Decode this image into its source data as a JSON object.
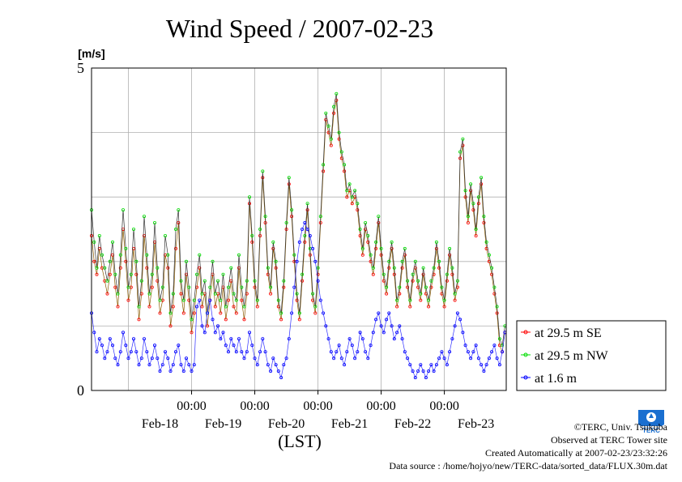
{
  "chart_data": {
    "type": "line",
    "title": "Wind Speed / 2007-02-23",
    "ylabel": "[m/s]",
    "xlabel": "(LST)",
    "ylim": [
      0,
      5
    ],
    "yticks": [
      "0",
      "5"
    ],
    "x_time_ticks": [
      "00:00",
      "00:00",
      "00:00",
      "00:00",
      "00:00"
    ],
    "x_date_ticks": [
      "Feb-18",
      "Feb-19",
      "Feb-20",
      "Feb-21",
      "Feb-22",
      "Feb-23"
    ],
    "xlim_days": [
      "2007-02-17T10:00",
      "2007-02-23T23:30"
    ],
    "grid": true,
    "legend_position": "right",
    "series": [
      {
        "name": "at 29.5 m SE",
        "color": "#ff0000",
        "x_days_step": 0.0416667,
        "values": [
          2.4,
          2.0,
          1.8,
          2.2,
          1.9,
          1.7,
          1.5,
          1.8,
          2.1,
          1.6,
          1.3,
          1.9,
          2.5,
          2.0,
          1.4,
          1.6,
          2.2,
          1.8,
          1.1,
          1.5,
          2.4,
          1.9,
          1.3,
          1.6,
          2.3,
          1.7,
          1.2,
          1.4,
          2.1,
          1.9,
          1.0,
          1.3,
          2.2,
          2.6,
          1.5,
          1.2,
          1.8,
          1.4,
          0.9,
          1.2,
          1.6,
          1.9,
          1.3,
          1.5,
          1.0,
          1.4,
          1.8,
          1.3,
          1.5,
          1.2,
          1.6,
          1.1,
          1.4,
          1.7,
          1.3,
          1.2,
          1.9,
          1.4,
          1.1,
          1.5,
          2.9,
          2.3,
          1.6,
          1.3,
          2.4,
          3.3,
          2.6,
          1.8,
          1.5,
          2.2,
          1.9,
          1.3,
          1.1,
          1.6,
          2.5,
          3.2,
          2.7,
          2.0,
          1.4,
          1.1,
          1.7,
          2.3,
          2.8,
          2.1,
          1.4,
          1.2,
          1.8,
          2.6,
          3.4,
          4.2,
          4.0,
          3.8,
          4.3,
          4.5,
          3.9,
          3.6,
          3.4,
          3.0,
          3.1,
          2.9,
          3.0,
          2.8,
          2.4,
          2.1,
          2.5,
          2.3,
          2.0,
          1.8,
          2.2,
          2.6,
          2.1,
          1.7,
          1.5,
          1.9,
          2.2,
          1.8,
          1.3,
          1.5,
          1.9,
          2.1,
          1.6,
          1.3,
          1.7,
          1.9,
          1.6,
          1.4,
          1.8,
          1.5,
          1.3,
          1.6,
          1.8,
          2.2,
          1.9,
          1.5,
          1.3,
          1.7,
          2.1,
          1.8,
          1.4,
          1.6,
          3.6,
          3.8,
          3.0,
          2.6,
          3.1,
          2.8,
          2.4,
          2.9,
          3.2,
          2.6,
          2.2,
          2.0,
          1.8,
          1.5,
          1.2,
          0.7,
          0.6,
          0.9,
          1.3,
          1.7,
          2.4,
          2.0,
          1.4,
          1.0,
          0.8,
          1.1,
          1.6,
          2.1,
          1.8,
          1.3,
          1.1,
          1.5,
          2.2,
          3.2,
          3.9,
          4.2,
          3.8,
          3.4,
          3.6,
          4.0,
          3.6,
          3.2,
          3.0,
          2.6,
          2.3,
          2.8,
          3.1,
          2.6,
          2.2,
          2.0,
          1.8,
          1.6,
          2.1,
          2.6,
          2.3,
          1.9,
          1.6,
          1.4,
          1.2,
          1.6,
          2.1,
          2.9,
          3.6,
          3.0,
          2.4,
          2.0,
          1.8,
          2.4,
          3.2,
          2.8,
          2.2,
          1.8,
          1.5,
          1.3,
          1.6,
          1.9,
          1.7,
          1.2,
          1.0,
          1.4,
          1.8,
          2.2,
          1.8,
          1.4,
          1.2,
          1.6,
          2.3,
          3.0,
          2.6,
          2.0,
          1.6,
          1.3,
          1.1,
          1.5,
          1.8,
          3.6,
          3.7,
          3.3,
          2.8,
          2.2,
          1.5,
          1.0
        ]
      },
      {
        "name": "at 29.5 m NW",
        "color": "#00dd00",
        "x_days_step": 0.0416667,
        "values": [
          2.8,
          2.3,
          1.9,
          2.4,
          2.1,
          1.9,
          1.7,
          2.0,
          2.3,
          1.8,
          1.5,
          2.1,
          2.8,
          2.2,
          1.6,
          1.8,
          2.5,
          2.0,
          1.3,
          1.7,
          2.7,
          2.1,
          1.5,
          1.8,
          2.6,
          1.9,
          1.4,
          1.6,
          2.4,
          2.1,
          1.2,
          1.5,
          2.5,
          2.8,
          1.7,
          1.4,
          2.0,
          1.6,
          1.1,
          1.4,
          1.8,
          2.1,
          1.5,
          1.7,
          1.2,
          1.6,
          2.0,
          1.5,
          1.7,
          1.4,
          1.8,
          1.3,
          1.6,
          1.9,
          1.5,
          1.4,
          2.1,
          1.6,
          1.3,
          1.7,
          3.0,
          2.4,
          1.7,
          1.4,
          2.5,
          3.4,
          2.7,
          1.9,
          1.6,
          2.3,
          2.0,
          1.4,
          1.2,
          1.7,
          2.6,
          3.3,
          2.8,
          2.1,
          1.5,
          1.2,
          1.8,
          2.4,
          2.9,
          2.2,
          1.5,
          1.3,
          1.9,
          2.7,
          3.5,
          4.3,
          4.1,
          3.9,
          4.4,
          4.6,
          4.0,
          3.7,
          3.5,
          3.1,
          3.2,
          3.0,
          3.1,
          2.9,
          2.5,
          2.2,
          2.6,
          2.4,
          2.1,
          1.9,
          2.3,
          2.7,
          2.2,
          1.8,
          1.6,
          2.0,
          2.3,
          1.9,
          1.4,
          1.6,
          2.0,
          2.2,
          1.7,
          1.4,
          1.8,
          2.0,
          1.7,
          1.5,
          1.9,
          1.6,
          1.4,
          1.7,
          1.9,
          2.3,
          2.0,
          1.6,
          1.4,
          1.8,
          2.2,
          1.9,
          1.5,
          1.7,
          3.7,
          3.9,
          3.1,
          2.7,
          3.2,
          2.9,
          2.5,
          3.0,
          3.3,
          2.7,
          2.3,
          2.1,
          1.9,
          1.6,
          1.3,
          0.8,
          0.7,
          1.0,
          1.4,
          1.8,
          2.5,
          2.1,
          1.5,
          1.1,
          0.9,
          1.2,
          1.7,
          2.2,
          1.9,
          1.4,
          1.2,
          1.6,
          2.3,
          3.3,
          4.0,
          4.4,
          3.9,
          3.5,
          3.7,
          4.1,
          3.7,
          3.3,
          3.1,
          2.7,
          2.4,
          2.9,
          3.2,
          2.7,
          2.3,
          2.1,
          1.9,
          1.7,
          2.2,
          2.7,
          2.4,
          2.0,
          1.7,
          1.5,
          1.3,
          1.7,
          2.2,
          3.0,
          3.7,
          3.1,
          2.5,
          2.1,
          1.9,
          2.5,
          3.3,
          2.9,
          2.3,
          1.9,
          1.6,
          1.4,
          1.7,
          2.0,
          1.8,
          1.3,
          1.1,
          1.5,
          1.9,
          2.3,
          1.9,
          1.5,
          1.3,
          1.7,
          2.4,
          3.1,
          2.7,
          2.1,
          1.7,
          1.4,
          1.2,
          1.6,
          1.9,
          3.7,
          3.8,
          3.4,
          2.9,
          2.3,
          1.6,
          1.1
        ]
      },
      {
        "name": "at 1.6 m",
        "color": "#0000ff",
        "x_days_step": 0.0416667,
        "values": [
          1.2,
          0.9,
          0.6,
          0.8,
          0.7,
          0.5,
          0.6,
          0.8,
          0.7,
          0.5,
          0.4,
          0.6,
          0.9,
          0.7,
          0.5,
          0.6,
          0.8,
          0.6,
          0.4,
          0.5,
          0.8,
          0.6,
          0.4,
          0.5,
          0.7,
          0.5,
          0.3,
          0.4,
          0.6,
          0.5,
          0.3,
          0.4,
          0.6,
          0.7,
          0.4,
          0.3,
          0.5,
          0.4,
          0.3,
          0.4,
          1.3,
          1.4,
          1.0,
          0.9,
          1.2,
          1.4,
          1.1,
          0.9,
          1.0,
          0.8,
          0.9,
          0.7,
          0.6,
          0.8,
          0.7,
          0.6,
          0.8,
          0.6,
          0.5,
          0.6,
          0.9,
          0.7,
          0.5,
          0.4,
          0.6,
          0.8,
          0.6,
          0.4,
          0.3,
          0.5,
          0.4,
          0.3,
          0.2,
          0.4,
          0.5,
          0.8,
          1.2,
          1.6,
          2.0,
          2.3,
          2.5,
          2.6,
          2.5,
          2.4,
          2.2,
          2.0,
          1.7,
          1.4,
          1.2,
          1.0,
          0.8,
          0.6,
          0.5,
          0.6,
          0.7,
          0.5,
          0.4,
          0.6,
          0.8,
          0.7,
          0.5,
          0.6,
          0.9,
          0.8,
          0.6,
          0.5,
          0.7,
          0.9,
          1.1,
          1.2,
          1.0,
          0.9,
          1.1,
          1.2,
          1.0,
          0.8,
          0.9,
          1.0,
          0.8,
          0.6,
          0.5,
          0.4,
          0.3,
          0.2,
          0.3,
          0.4,
          0.3,
          0.2,
          0.3,
          0.4,
          0.3,
          0.4,
          0.5,
          0.6,
          0.5,
          0.4,
          0.6,
          0.8,
          1.0,
          1.2,
          1.1,
          0.9,
          0.7,
          0.6,
          0.5,
          0.6,
          0.7,
          0.5,
          0.4,
          0.3,
          0.4,
          0.5,
          0.6,
          0.7,
          0.5,
          0.4,
          0.6,
          0.9,
          1.2,
          1.0,
          0.8,
          0.6,
          0.5,
          0.6,
          0.8,
          0.6,
          0.5,
          0.4,
          0.5,
          0.7,
          0.6,
          0.5,
          0.6,
          0.8,
          0.7,
          0.6,
          0.5,
          0.4,
          0.6,
          0.8,
          0.7,
          0.5,
          0.6,
          0.7,
          0.9,
          0.8,
          0.6,
          0.5,
          0.7,
          0.9,
          1.1,
          1.0,
          0.8,
          0.7,
          0.9,
          1.1,
          1.3,
          1.2,
          1.0,
          0.9,
          1.1,
          1.3,
          1.5,
          1.4,
          1.2,
          1.0,
          1.1,
          1.3,
          1.2,
          1.0,
          0.8,
          0.7,
          0.6,
          0.7,
          0.9,
          1.1,
          1.3,
          1.2,
          1.0,
          0.9,
          1.1,
          1.4,
          1.6,
          1.5,
          1.3,
          1.1,
          0.9,
          0.8,
          0.6,
          0.5
        ]
      }
    ]
  },
  "footer": {
    "copyright": "©TERC, Univ. Tsukuba",
    "site": "Observed at TERC Tower site",
    "created": "Created Automatically at 2007-02-23/23:32:26",
    "source": "Data source : /home/hojyo/new/TERC-data/sorted_data/FLUX.30m.dat"
  },
  "logo": {
    "text": "TERC",
    "color": "#1a6fd0"
  }
}
